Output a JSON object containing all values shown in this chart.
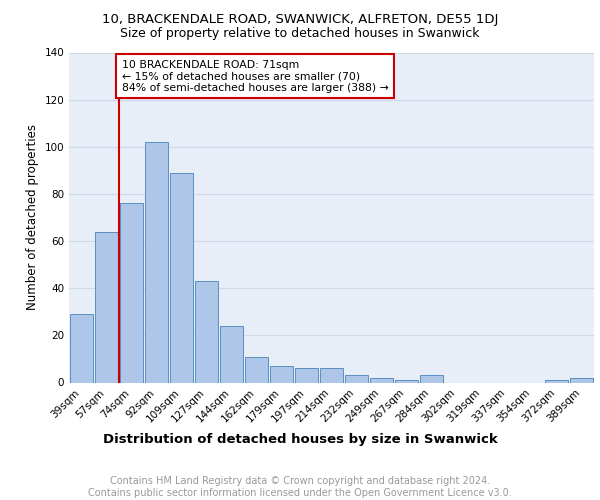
{
  "title": "10, BRACKENDALE ROAD, SWANWICK, ALFRETON, DE55 1DJ",
  "subtitle": "Size of property relative to detached houses in Swanwick",
  "xlabel": "Distribution of detached houses by size in Swanwick",
  "ylabel": "Number of detached properties",
  "categories": [
    "39sqm",
    "57sqm",
    "74sqm",
    "92sqm",
    "109sqm",
    "127sqm",
    "144sqm",
    "162sqm",
    "179sqm",
    "197sqm",
    "214sqm",
    "232sqm",
    "249sqm",
    "267sqm",
    "284sqm",
    "302sqm",
    "319sqm",
    "337sqm",
    "354sqm",
    "372sqm",
    "389sqm"
  ],
  "values": [
    29,
    64,
    76,
    102,
    89,
    43,
    24,
    11,
    7,
    6,
    6,
    3,
    2,
    1,
    3,
    0,
    0,
    0,
    0,
    1,
    2
  ],
  "bar_color": "#aec6e8",
  "bar_edge_color": "#5a8fc2",
  "vline_x_index": 2,
  "vline_color": "#cc0000",
  "annotation_text": "10 BRACKENDALE ROAD: 71sqm\n← 15% of detached houses are smaller (70)\n84% of semi-detached houses are larger (388) →",
  "annotation_box_color": "#ffffff",
  "annotation_box_edge_color": "#cc0000",
  "ylim": [
    0,
    140
  ],
  "yticks": [
    0,
    20,
    40,
    60,
    80,
    100,
    120,
    140
  ],
  "grid_color": "#d0d8e8",
  "bg_color": "#e8eef8",
  "footer_line1": "Contains HM Land Registry data © Crown copyright and database right 2024.",
  "footer_line2": "Contains public sector information licensed under the Open Government Licence v3.0.",
  "title_fontsize": 9.5,
  "subtitle_fontsize": 9,
  "xlabel_fontsize": 9.5,
  "ylabel_fontsize": 8.5,
  "tick_fontsize": 7.5,
  "footer_fontsize": 7,
  "annotation_fontsize": 7.8
}
